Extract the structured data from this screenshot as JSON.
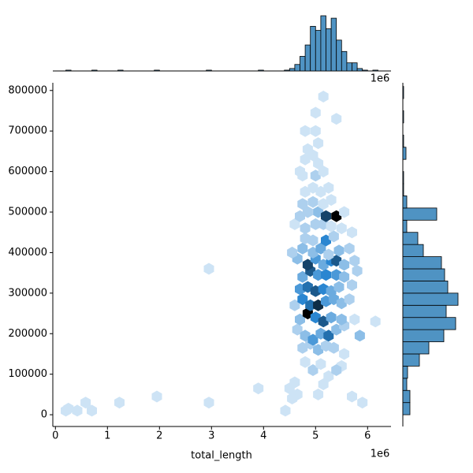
{
  "chart_data": {
    "type": "hexbin-joint",
    "x_label": "total_length",
    "x_offset_label": "1e6",
    "xlim": [
      -50000,
      6450000
    ],
    "xticks": [
      0,
      {
        "value": 1000000,
        "label": "1"
      },
      {
        "value": 2000000,
        "label": "2"
      },
      {
        "value": 3000000,
        "label": "3"
      },
      {
        "value": 4000000,
        "label": "4"
      },
      {
        "value": 5000000,
        "label": "5"
      },
      {
        "value": 6000000,
        "label": "6"
      }
    ],
    "ylim": [
      -29000,
      819000
    ],
    "yticks": [
      0,
      100000,
      200000,
      300000,
      400000,
      500000,
      600000,
      700000,
      800000
    ],
    "cmap": [
      "#eef5fc",
      "#2a86d1",
      "#000000"
    ],
    "hist_color": "#4f93c3",
    "hexbins": {
      "x": [
        200000,
        420000,
        250000,
        700000,
        580000,
        1230000,
        1950000,
        2950000,
        2950000,
        3900000,
        4420000,
        4500000,
        4600000,
        4650000,
        4550000,
        5050000,
        5150000,
        5250000,
        5500000,
        5700000,
        5900000,
        4800000,
        4950000,
        5100000,
        5400000,
        4750000,
        4900000,
        5050000,
        5200000,
        5350000,
        5550000,
        4650000,
        4800000,
        4950000,
        5100000,
        5250000,
        5400000,
        5550000,
        5850000,
        6150000,
        4700000,
        4850000,
        5000000,
        5150000,
        5300000,
        5500000,
        5750000,
        4600000,
        4750000,
        4900000,
        5050000,
        5200000,
        5350000,
        5500000,
        5650000,
        4700000,
        4850000,
        5000000,
        5150000,
        5300000,
        5450000,
        5700000,
        4750000,
        4900000,
        5050000,
        5200000,
        5400000,
        5550000,
        5800000,
        4650000,
        4850000,
        5000000,
        5150000,
        5300000,
        5400000,
        5550000,
        5750000,
        4550000,
        4750000,
        4950000,
        5100000,
        5250000,
        5450000,
        5650000,
        4800000,
        4950000,
        5200000,
        5350000,
        5700000,
        4600000,
        4800000,
        5000000,
        5150000,
        5300000,
        5500000,
        4700000,
        4850000,
        5050000,
        5200000,
        5400000,
        5550000,
        4750000,
        4950000,
        5150000,
        5300000,
        4800000,
        4950000,
        5100000,
        5250000,
        4750000,
        5000000,
        5150000,
        4700000,
        4800000,
        4950000,
        5050000,
        4850000,
        5050000,
        4800000,
        5000000,
        5400000,
        5000000,
        5150000
      ],
      "y": [
        10000,
        10000,
        15000,
        10000,
        30000,
        30000,
        45000,
        30000,
        360000,
        65000,
        10000,
        65000,
        80000,
        50000,
        40000,
        50000,
        75000,
        95000,
        120000,
        45000,
        30000,
        130000,
        110000,
        125000,
        110000,
        165000,
        175000,
        160000,
        170000,
        165000,
        150000,
        210000,
        195000,
        185000,
        200000,
        195000,
        210000,
        220000,
        195000,
        230000,
        235000,
        250000,
        240000,
        230000,
        240000,
        235000,
        235000,
        270000,
        285000,
        270000,
        270000,
        280000,
        285000,
        275000,
        285000,
        310000,
        315000,
        305000,
        310000,
        305000,
        315000,
        320000,
        340000,
        355000,
        345000,
        345000,
        345000,
        340000,
        355000,
        385000,
        370000,
        385000,
        370000,
        380000,
        380000,
        370000,
        380000,
        400000,
        410000,
        400000,
        410000,
        395000,
        405000,
        410000,
        435000,
        430000,
        430000,
        440000,
        450000,
        470000,
        460000,
        470000,
        470000,
        465000,
        460000,
        490000,
        500000,
        500000,
        490000,
        490000,
        500000,
        520000,
        525000,
        520000,
        530000,
        550000,
        560000,
        550000,
        560000,
        590000,
        590000,
        600000,
        600000,
        630000,
        640000,
        620000,
        655000,
        670000,
        700000,
        700000,
        730000,
        745000,
        785000
      ],
      "counts": [
        1,
        1,
        1,
        1,
        1,
        1,
        1,
        1,
        1,
        1,
        1,
        1,
        1,
        1,
        1,
        1,
        1,
        1,
        1,
        1,
        1,
        1,
        2,
        1,
        2,
        2,
        2,
        3,
        2,
        2,
        1,
        2,
        3,
        5,
        4,
        7,
        3,
        2,
        3,
        1,
        3,
        12,
        6,
        8,
        4,
        3,
        1,
        2,
        6,
        7,
        10,
        5,
        4,
        3,
        2,
        5,
        7,
        8,
        6,
        4,
        3,
        2,
        4,
        8,
        5,
        6,
        5,
        3,
        2,
        3,
        9,
        5,
        4,
        6,
        8,
        3,
        2,
        2,
        3,
        3,
        4,
        2,
        3,
        2,
        2,
        2,
        6,
        2,
        1,
        1,
        2,
        2,
        2,
        1,
        1,
        2,
        2,
        3,
        9,
        12,
        1,
        2,
        2,
        1,
        1,
        1,
        1,
        1,
        1,
        1,
        2,
        1,
        1,
        1,
        1,
        1,
        1,
        1,
        1,
        1,
        1,
        1,
        1
      ]
    },
    "x_hist": {
      "bins": [
        0,
        100000,
        200000,
        300000,
        400000,
        500000,
        600000,
        700000,
        800000,
        900000,
        1000000,
        1100000,
        1200000,
        1300000,
        1400000,
        1500000,
        1600000,
        1700000,
        1800000,
        1900000,
        2000000,
        2100000,
        2200000,
        2300000,
        2400000,
        2500000,
        2600000,
        2700000,
        2800000,
        2900000,
        3000000,
        3100000,
        3200000,
        3300000,
        3400000,
        3500000,
        3600000,
        3700000,
        3800000,
        3900000,
        4000000,
        4100000,
        4200000,
        4300000,
        4400000,
        4500000,
        4600000,
        4700000,
        4800000,
        4900000,
        5000000,
        5100000,
        5200000,
        5300000,
        5400000,
        5500000,
        5600000,
        5700000,
        5800000,
        5900000,
        6000000,
        6100000,
        6200000,
        6300000
      ],
      "counts": [
        0,
        0,
        1,
        0,
        0,
        0,
        0,
        1,
        0,
        0,
        0,
        0,
        1,
        0,
        0,
        0,
        0,
        0,
        0,
        1,
        0,
        0,
        0,
        0,
        0,
        0,
        0,
        0,
        0,
        1,
        0,
        0,
        0,
        0,
        0,
        0,
        0,
        0,
        0,
        1,
        0,
        0,
        0,
        0,
        1,
        3,
        8,
        18,
        32,
        55,
        50,
        68,
        52,
        65,
        38,
        24,
        10,
        10,
        3,
        1,
        0,
        1,
        0
      ]
    },
    "y_hist": {
      "bins": [
        0,
        30000,
        60000,
        90000,
        120000,
        150000,
        180000,
        210000,
        240000,
        270000,
        300000,
        330000,
        360000,
        390000,
        420000,
        450000,
        480000,
        510000,
        540000,
        570000,
        600000,
        630000,
        660000,
        690000,
        720000,
        750000,
        780000,
        810000
      ],
      "counts": [
        9,
        9,
        5,
        6,
        21,
        33,
        52,
        67,
        55,
        70,
        57,
        53,
        49,
        26,
        19,
        5,
        43,
        5,
        1,
        1,
        0,
        4,
        1,
        0,
        1,
        0,
        1
      ]
    }
  }
}
